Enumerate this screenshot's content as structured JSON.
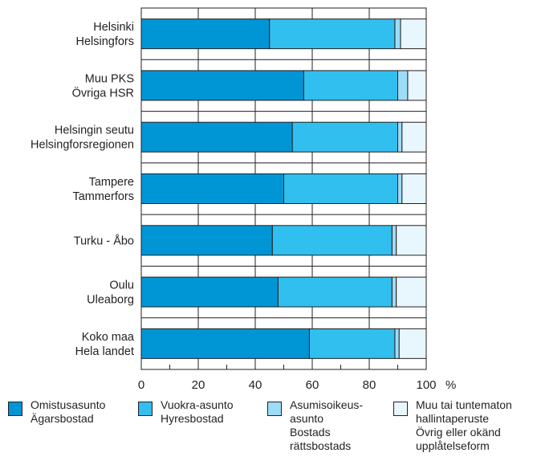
{
  "chart_data": {
    "type": "bar",
    "orientation": "horizontal",
    "stacked": true,
    "categories": [
      [
        "Helsinki",
        "Helsingfors"
      ],
      [
        "Muu PKS",
        "Övriga HSR"
      ],
      [
        "Helsingin seutu",
        "Helsingforsregionen"
      ],
      [
        "Tampere",
        "Tammerfors"
      ],
      [
        "Turku - Åbo"
      ],
      [
        "Oulu",
        "Uleaborg"
      ],
      [
        "Koko maa",
        "Hela landet"
      ]
    ],
    "series": [
      {
        "name": [
          "Omistusasunto",
          "Ägarsbostad"
        ],
        "color": "#0096d6",
        "values": [
          45,
          57,
          53,
          50,
          46,
          48,
          59
        ]
      },
      {
        "name": [
          "Vuokra-asunto",
          "Hyresbostad"
        ],
        "color": "#30bfee",
        "values": [
          44,
          33,
          37,
          40,
          42,
          40,
          30
        ]
      },
      {
        "name": [
          "Asumisoikeus-",
          "asunto",
          "Bostads",
          "rättsbostads"
        ],
        "color": "#9ddcf7",
        "values": [
          2,
          3.5,
          1.5,
          1.5,
          1.5,
          1.5,
          1.5
        ]
      },
      {
        "name": [
          "Muu tai tuntematon",
          "hallintaperuste",
          "Övrig eller okänd",
          "upplåtelseform"
        ],
        "color": "#e8f6fd",
        "values": [
          9,
          6.5,
          8.5,
          8.5,
          10.5,
          10.5,
          9.5
        ]
      }
    ],
    "x_ticks": [
      "0",
      "20",
      "40",
      "60",
      "80",
      "100"
    ],
    "unit": "%",
    "xlim": [
      0,
      100
    ],
    "grid": true,
    "legend_position": "bottom"
  }
}
